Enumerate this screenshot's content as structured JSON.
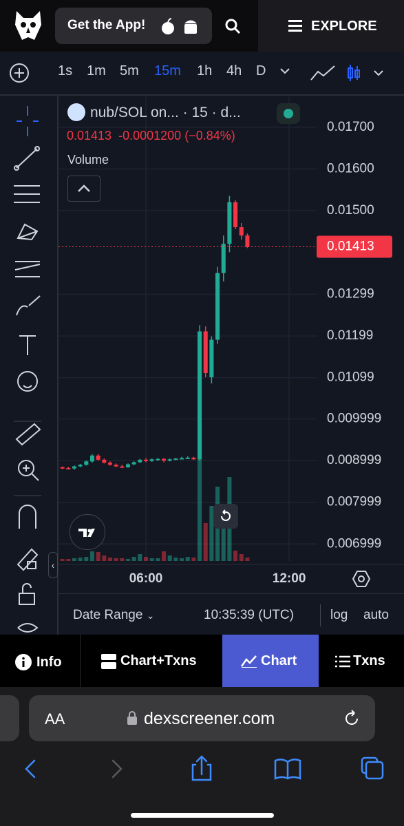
{
  "header": {
    "app_button": "Get the App!",
    "explore": "EXPLORE"
  },
  "toolbar": {
    "timeframes": [
      "1s",
      "1m",
      "5m",
      "15m",
      "1h",
      "4h",
      "D"
    ],
    "selected": "15m"
  },
  "chart_data": {
    "type": "candlestick",
    "title": "nub/SOL on... · 15 · d...",
    "last_price": 0.01413,
    "change": "-0.0001200",
    "change_pct": "(−0.84%)",
    "volume_label": "Volume",
    "up_color": "#22ab94",
    "down_color": "#f23645",
    "x": [
      0,
      1,
      2,
      3,
      4,
      5,
      6,
      7,
      8,
      9,
      10,
      11,
      12,
      13,
      14,
      15,
      16,
      17,
      18,
      19,
      20,
      21,
      22,
      23,
      24,
      25,
      26,
      27,
      28,
      29,
      30,
      31
    ],
    "open": [
      0.00884,
      0.00882,
      0.00881,
      0.00886,
      0.0089,
      0.00898,
      0.00912,
      0.00902,
      0.00895,
      0.0089,
      0.00886,
      0.00884,
      0.00891,
      0.00896,
      0.00902,
      0.00899,
      0.00903,
      0.00904,
      0.009,
      0.00903,
      0.00905,
      0.00906,
      0.00907,
      0.00903,
      0.0121,
      0.011,
      0.0119,
      0.0135,
      0.0142,
      0.0152,
      0.0146,
      0.0144
    ],
    "high": [
      0.00886,
      0.00885,
      0.00888,
      0.00892,
      0.009,
      0.00915,
      0.00916,
      0.00905,
      0.00898,
      0.00893,
      0.0089,
      0.00893,
      0.00898,
      0.00904,
      0.00906,
      0.00905,
      0.00906,
      0.00906,
      0.00905,
      0.00906,
      0.00909,
      0.0091,
      0.00909,
      0.01225,
      0.01222,
      0.01198,
      0.01365,
      0.0144,
      0.01535,
      0.01525,
      0.0147,
      0.01445
    ],
    "low": [
      0.0088,
      0.00879,
      0.00878,
      0.00884,
      0.00888,
      0.00895,
      0.009,
      0.00893,
      0.00888,
      0.00884,
      0.00882,
      0.00883,
      0.00889,
      0.00894,
      0.00896,
      0.00897,
      0.009,
      0.00896,
      0.00898,
      0.00901,
      0.00903,
      0.00904,
      0.00902,
      0.009,
      0.011,
      0.01085,
      0.0118,
      0.0133,
      0.014,
      0.01455,
      0.0143,
      0.0141
    ],
    "close": [
      0.00882,
      0.00881,
      0.00886,
      0.0089,
      0.00898,
      0.00912,
      0.00902,
      0.00895,
      0.0089,
      0.00886,
      0.00884,
      0.00891,
      0.00896,
      0.00902,
      0.00899,
      0.00903,
      0.00904,
      0.009,
      0.00903,
      0.00905,
      0.00906,
      0.00907,
      0.00903,
      0.0121,
      0.0111,
      0.0119,
      0.0135,
      0.0142,
      0.0152,
      0.0146,
      0.0144,
      0.01413
    ],
    "volume": [
      3,
      3,
      4,
      5,
      6,
      14,
      13,
      8,
      5,
      4,
      4,
      3,
      6,
      10,
      6,
      4,
      4,
      14,
      8,
      5,
      4,
      6,
      5,
      150,
      55,
      80,
      108,
      70,
      122,
      15,
      10,
      5
    ],
    "xlim": [
      -0.65,
      42.6
    ],
    "xticks": [
      {
        "value": 14,
        "label": "06:00"
      },
      {
        "value": 38,
        "label": "12:00"
      }
    ],
    "ylim": [
      0.00659,
      0.01774
    ],
    "yticks": [
      {
        "value": 0.017,
        "label": "0.01700"
      },
      {
        "value": 0.016,
        "label": "0.01600"
      },
      {
        "value": 0.015,
        "label": "0.01500"
      },
      0.01299,
      0.01199,
      0.01099,
      0.009999,
      0.008999,
      0.007999,
      0.006999
    ],
    "grid": true
  },
  "chart_footer": {
    "date_range": "Date Range",
    "time": "10:35:39 (UTC)",
    "log": "log",
    "auto": "auto"
  },
  "tabs": [
    "Info",
    "Chart+Txns",
    "Chart",
    "Txns"
  ],
  "selected_tab": "Chart",
  "browser": {
    "text_size": "AA",
    "url": "dexscreener.com"
  }
}
